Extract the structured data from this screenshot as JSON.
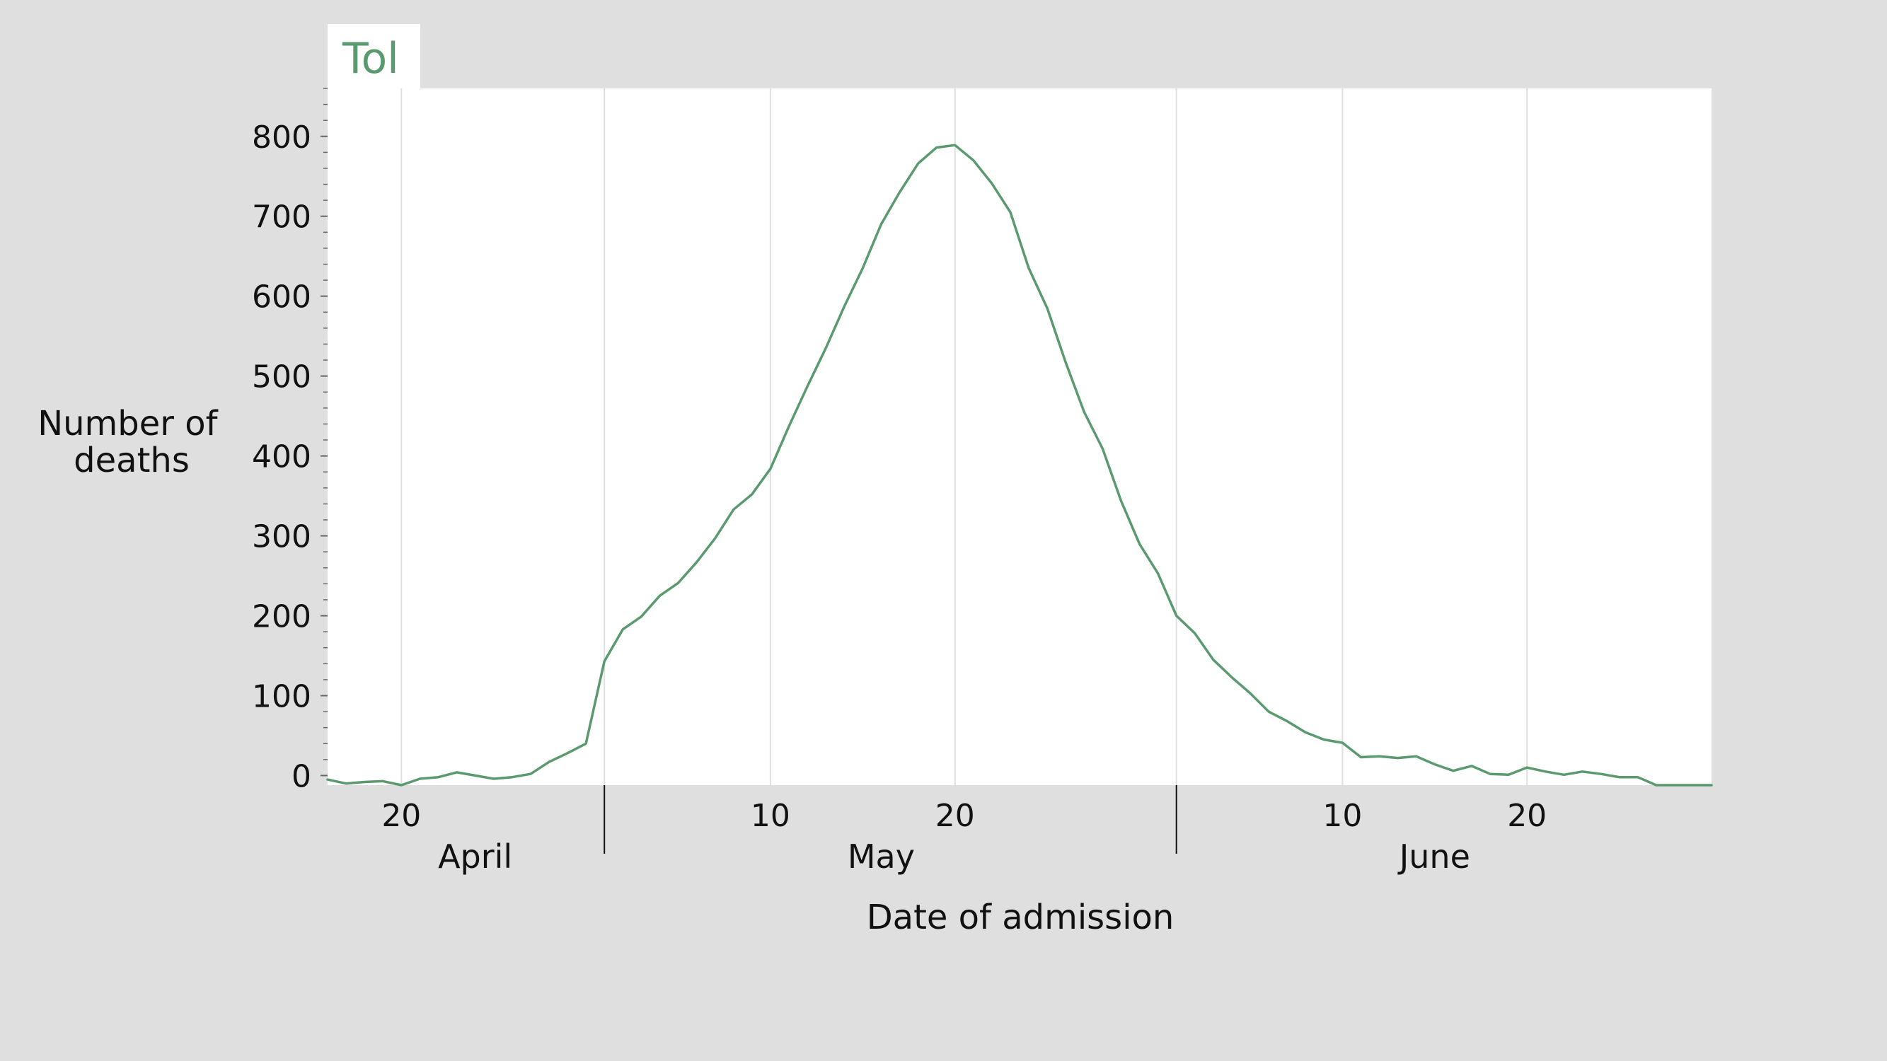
{
  "colors": {
    "background": "#dfdfdf",
    "plot_background": "#ffffff",
    "series": "#5a9a6e",
    "grid": "#e0e0e0",
    "text": "#111111"
  },
  "tab": {
    "label": "Tol"
  },
  "chart_data": {
    "type": "line",
    "xlabel": "Date of admission",
    "ylabel": "Number of deaths",
    "ylim": [
      -12,
      860
    ],
    "yticks": [
      0,
      100,
      200,
      300,
      400,
      500,
      600,
      700,
      800
    ],
    "grid": "vertical",
    "xlim": [
      "2020-04-16",
      "2020-06-30"
    ],
    "xticks": [
      {
        "date": "2020-04-20",
        "label": "20"
      },
      {
        "date": "2020-05-10",
        "label": "10"
      },
      {
        "date": "2020-05-20",
        "label": "20"
      },
      {
        "date": "2020-06-10",
        "label": "10"
      },
      {
        "date": "2020-06-20",
        "label": "20"
      }
    ],
    "month_boundaries": [
      "2020-05-01",
      "2020-06-01"
    ],
    "months": [
      {
        "label": "April",
        "start": "2020-04-16",
        "end": "2020-05-01"
      },
      {
        "label": "May",
        "start": "2020-05-01",
        "end": "2020-06-01"
      },
      {
        "label": "June",
        "start": "2020-06-01",
        "end": "2020-06-30"
      }
    ],
    "series": [
      {
        "x": [
          "2020-04-16",
          "2020-04-17",
          "2020-04-18",
          "2020-04-19",
          "2020-04-20",
          "2020-04-21",
          "2020-04-22",
          "2020-04-23",
          "2020-04-24",
          "2020-04-25",
          "2020-04-26",
          "2020-04-27",
          "2020-04-28",
          "2020-04-29",
          "2020-04-30",
          "2020-05-01",
          "2020-05-02",
          "2020-05-03",
          "2020-05-04",
          "2020-05-05",
          "2020-05-06",
          "2020-05-07",
          "2020-05-08",
          "2020-05-09",
          "2020-05-10",
          "2020-05-11",
          "2020-05-12",
          "2020-05-13",
          "2020-05-14",
          "2020-05-15",
          "2020-05-16",
          "2020-05-17",
          "2020-05-18",
          "2020-05-19",
          "2020-05-20",
          "2020-05-21",
          "2020-05-22",
          "2020-05-23",
          "2020-05-24",
          "2020-05-25",
          "2020-05-26",
          "2020-05-27",
          "2020-05-28",
          "2020-05-29",
          "2020-05-30",
          "2020-05-31",
          "2020-06-01",
          "2020-06-02",
          "2020-06-03",
          "2020-06-04",
          "2020-06-05",
          "2020-06-06",
          "2020-06-07",
          "2020-06-08",
          "2020-06-09",
          "2020-06-10",
          "2020-06-11",
          "2020-06-12",
          "2020-06-13",
          "2020-06-14",
          "2020-06-15",
          "2020-06-16",
          "2020-06-17",
          "2020-06-18",
          "2020-06-19",
          "2020-06-20",
          "2020-06-21",
          "2020-06-22",
          "2020-06-23",
          "2020-06-24",
          "2020-06-25",
          "2020-06-26",
          "2020-06-27",
          "2020-06-28",
          "2020-06-29",
          "2020-06-30"
        ],
        "y": [
          -5,
          -10,
          -8,
          -7,
          -12,
          -4,
          -2,
          4,
          0,
          -4,
          -2,
          2,
          17,
          28,
          40,
          143,
          183,
          199,
          225,
          241,
          267,
          297,
          333,
          352,
          384,
          437,
          487,
          535,
          587,
          635,
          690,
          730,
          766,
          786,
          789,
          770,
          741,
          705,
          635,
          585,
          517,
          455,
          409,
          344,
          290,
          253,
          200,
          178,
          145,
          123,
          103,
          80,
          68,
          54,
          45,
          41,
          23,
          24,
          22,
          24,
          14,
          6,
          12,
          2,
          1,
          10,
          5,
          1,
          5,
          2,
          -2,
          -2,
          -12,
          -12,
          -12,
          -12
        ]
      }
    ]
  }
}
